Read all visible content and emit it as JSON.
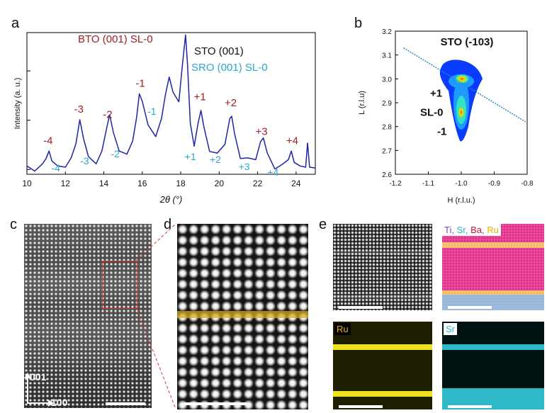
{
  "panels": {
    "a": "a",
    "b": "b",
    "c": "c",
    "d": "d",
    "e": "e"
  },
  "xrd": {
    "chart_data": {
      "type": "line",
      "xlabel": "2θ (°)",
      "ylabel": "Intensity (a. u.)",
      "xlim": [
        10,
        25
      ],
      "xticks": [
        "10",
        "12",
        "14",
        "16",
        "18",
        "20",
        "22",
        "24"
      ],
      "yscale": "log",
      "series": [
        {
          "x": [
            10.0,
            10.4,
            10.8,
            11.0,
            11.15,
            11.3,
            11.6,
            12.0,
            12.3,
            12.55,
            12.75,
            12.95,
            13.2,
            13.6,
            13.9,
            14.15,
            14.3,
            14.5,
            14.8,
            15.2,
            15.5,
            15.7,
            15.85,
            16.0,
            16.3,
            16.7,
            17.0,
            17.2,
            17.4,
            17.6,
            17.9,
            18.1,
            18.25,
            18.35,
            18.5,
            18.7,
            18.9,
            19.05,
            19.2,
            19.5,
            19.9,
            20.3,
            20.55,
            20.65,
            20.8,
            21.1,
            21.5,
            21.9,
            22.15,
            22.3,
            22.5,
            22.9,
            23.3,
            23.6,
            23.75,
            23.9,
            24.2,
            24.5,
            24.6,
            24.7,
            25.0
          ],
          "y": [
            0.011,
            0.01,
            0.012,
            0.018,
            0.022,
            0.016,
            0.011,
            0.012,
            0.016,
            0.036,
            0.095,
            0.045,
            0.017,
            0.014,
            0.022,
            0.075,
            0.12,
            0.06,
            0.022,
            0.022,
            0.035,
            0.12,
            0.32,
            0.26,
            0.075,
            0.05,
            0.1,
            0.35,
            0.7,
            0.4,
            0.22,
            1.6,
            5.0,
            1.5,
            0.08,
            0.032,
            0.08,
            0.17,
            0.07,
            0.025,
            0.02,
            0.035,
            0.1,
            0.13,
            0.05,
            0.018,
            0.016,
            0.017,
            0.034,
            0.047,
            0.02,
            0.011,
            0.012,
            0.017,
            0.022,
            0.015,
            0.011,
            0.012,
            0.032,
            0.012,
            0.01
          ]
        }
      ],
      "annotations_upper": [
        {
          "text": "-4",
          "x": 11.1
        },
        {
          "text": "-3",
          "x": 12.7
        },
        {
          "text": "-2",
          "x": 14.2
        },
        {
          "text": "-1",
          "x": 15.9
        },
        {
          "text": "+1",
          "x": 19.0
        },
        {
          "text": "+2",
          "x": 20.6
        },
        {
          "text": "+3",
          "x": 22.2
        },
        {
          "text": "+4",
          "x": 23.8
        }
      ],
      "annotations_lower": [
        {
          "text": "-4",
          "x": 11.5
        },
        {
          "text": "-3",
          "x": 13.0
        },
        {
          "text": "-2",
          "x": 14.6
        },
        {
          "text": "-1",
          "x": 16.5
        },
        {
          "text": "+1",
          "x": 18.5
        },
        {
          "text": "+2",
          "x": 19.8
        },
        {
          "text": "+3",
          "x": 21.3
        },
        {
          "text": "+4",
          "x": 22.8
        }
      ],
      "legend": [
        {
          "text": "BTO (001) SL-0",
          "color": "#a01e22"
        },
        {
          "text": "STO (001)",
          "color": "#111111"
        },
        {
          "text": "SRO (001) SL-0",
          "color": "#2aa7cc"
        }
      ],
      "line_color": "#1f24a6",
      "upper_color": "#a01e22",
      "lower_color": "#2aa7cc"
    }
  },
  "rsm": {
    "chart_data": {
      "type": "heatmap",
      "xlabel": "H (r.l.u.)",
      "ylabel": "L (r.l.u)",
      "xlim": [
        -1.2,
        -0.8
      ],
      "ylim": [
        2.6,
        3.2
      ],
      "xticks": [
        "-1.2",
        "-1.1",
        "-1.0",
        "-0.9",
        "-0.8"
      ],
      "yticks": [
        "2.6",
        "2.7",
        "2.8",
        "2.9",
        "3.0",
        "3.1",
        "3.2"
      ],
      "peaks": [
        {
          "label": "STO (-103)",
          "H": -1.0,
          "L": 3.0
        },
        {
          "label": "+1",
          "H": -1.0,
          "L": 2.93
        },
        {
          "label": "SL-0",
          "H": -1.0,
          "L": 2.86
        },
        {
          "label": "-1",
          "H": -1.0,
          "L": 2.79
        }
      ],
      "dashed_line": {
        "from": {
          "H": -1.175,
          "L": 3.13
        },
        "to": {
          "H": -0.805,
          "L": 2.82
        }
      },
      "colors": [
        "#0a3cff",
        "#1d9bff",
        "#33e0c8",
        "#9aef3a",
        "#ffd000",
        "#ff3a00"
      ]
    }
  },
  "haadf": {
    "axis_vertical": "001",
    "axis_horizontal": "100"
  },
  "eds": {
    "composite_label": [
      {
        "text": "Ti,",
        "color": "#7a4ab8"
      },
      {
        "text": "Sr,",
        "color": "#29b6cf"
      },
      {
        "text": "Ba,",
        "color": "#c01a36"
      },
      {
        "text": "Ru",
        "color": "#e2b400"
      }
    ],
    "ru_label": {
      "text": "Ru",
      "color": "#e2b400"
    },
    "sr_label": {
      "text": "Sr",
      "color": "#29b6cf"
    }
  }
}
